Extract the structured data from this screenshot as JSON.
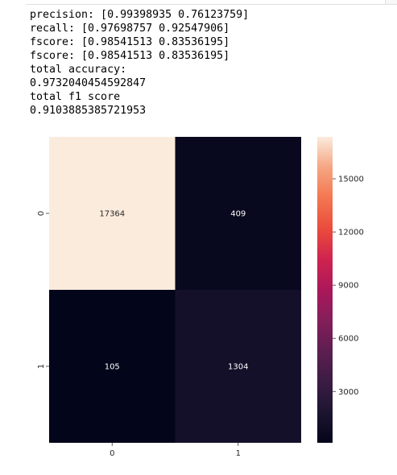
{
  "console_output": [
    "precision: [0.99398935 0.76123759]",
    "recall: [0.97698757 0.92547906]",
    "fscore: [0.98541513 0.83536195]",
    "fscore: [0.98541513 0.83536195]",
    "total accuracy:",
    "0.9732040454592847",
    "total f1 score",
    "0.9103885385721953"
  ],
  "chart_data": {
    "type": "heatmap",
    "colormap": "rocket",
    "x_categories": [
      "0",
      "1"
    ],
    "y_categories": [
      "0",
      "1"
    ],
    "values": [
      [
        17364,
        409
      ],
      [
        105,
        1304
      ]
    ],
    "annotations": [
      [
        "17364",
        "409"
      ],
      [
        "105",
        "1304"
      ]
    ],
    "colorbar": {
      "ticks": [
        "3000",
        "6000",
        "9000",
        "12000",
        "15000"
      ],
      "vmin": 105,
      "vmax": 17364
    },
    "title": "",
    "xlabel": "",
    "ylabel": "",
    "grid": false
  }
}
